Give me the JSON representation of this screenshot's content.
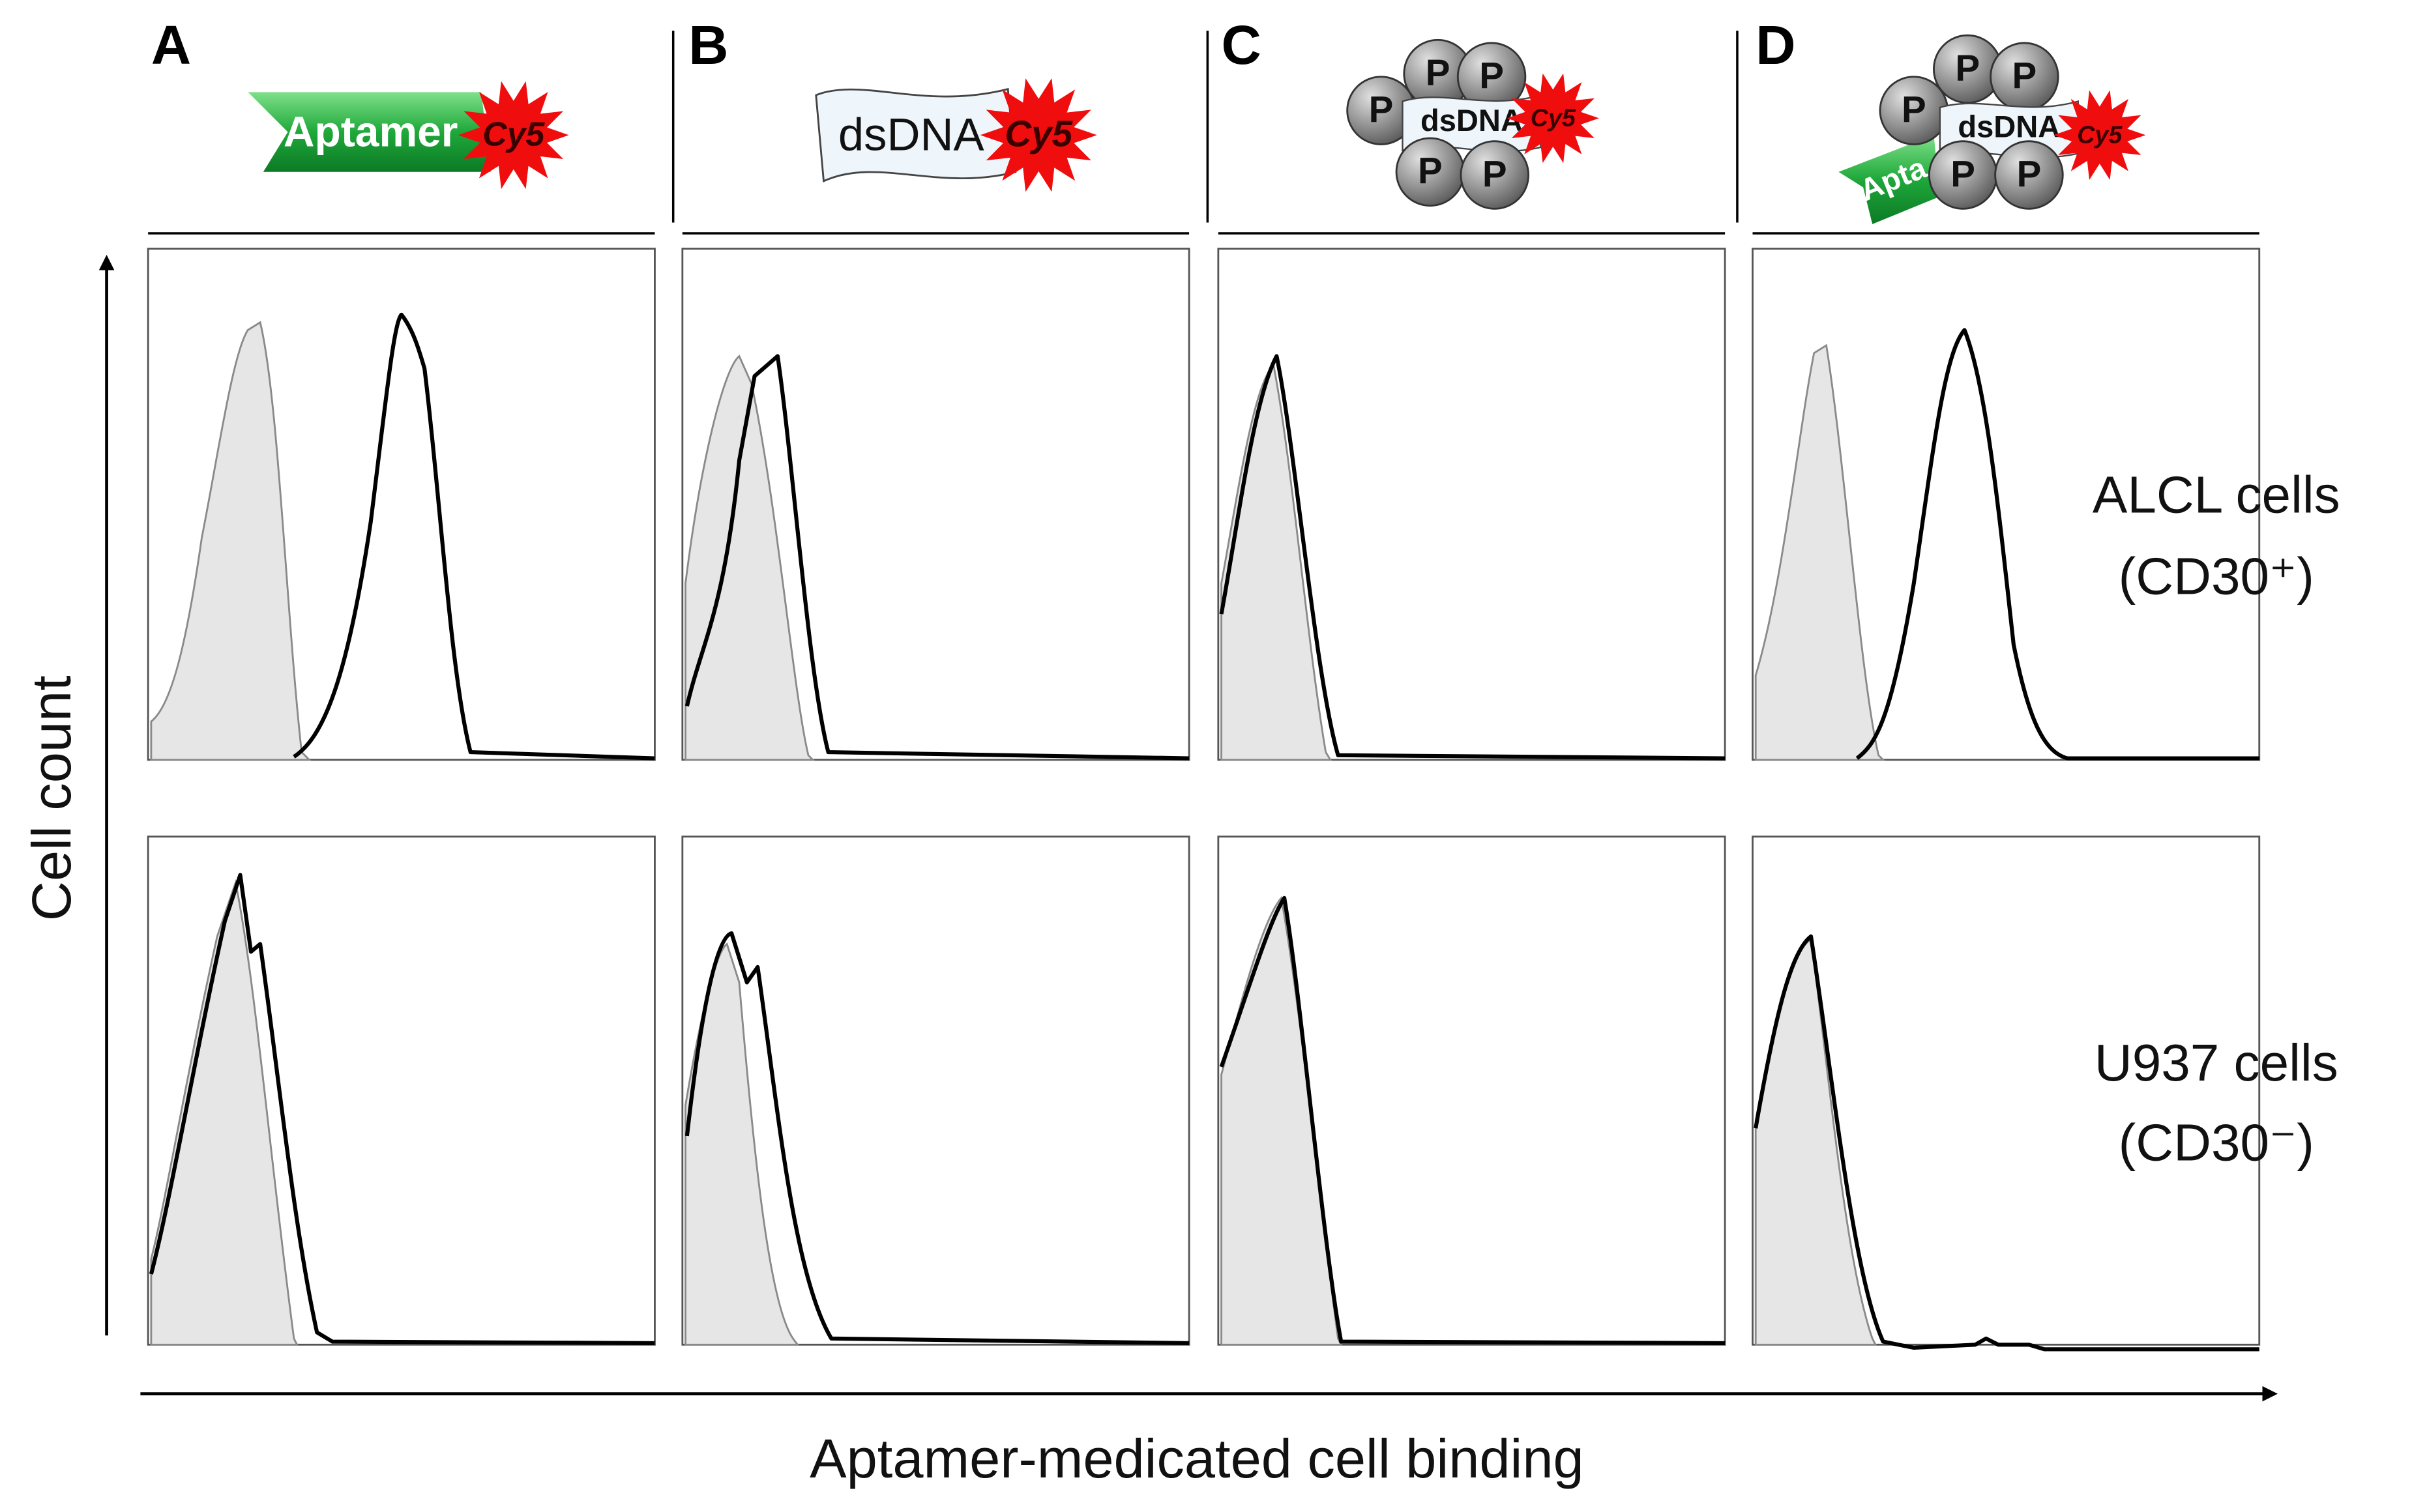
{
  "panels": [
    {
      "letter": "A"
    },
    {
      "letter": "B"
    },
    {
      "letter": "C"
    },
    {
      "letter": "D"
    }
  ],
  "icons": {
    "aptamer": "Aptamer",
    "aptamer_partial": "Apta",
    "fluor": "Cy5",
    "dsdna": "dsDNA",
    "protein": "P"
  },
  "rows": [
    {
      "name": "ALCL cells",
      "marker": "(CD30⁺)"
    },
    {
      "name": "U937 cells",
      "marker": "(CD30⁻)"
    }
  ],
  "axes": {
    "y_label": "Cell count",
    "x_label": "Aptamer-medicated cell binding"
  }
}
